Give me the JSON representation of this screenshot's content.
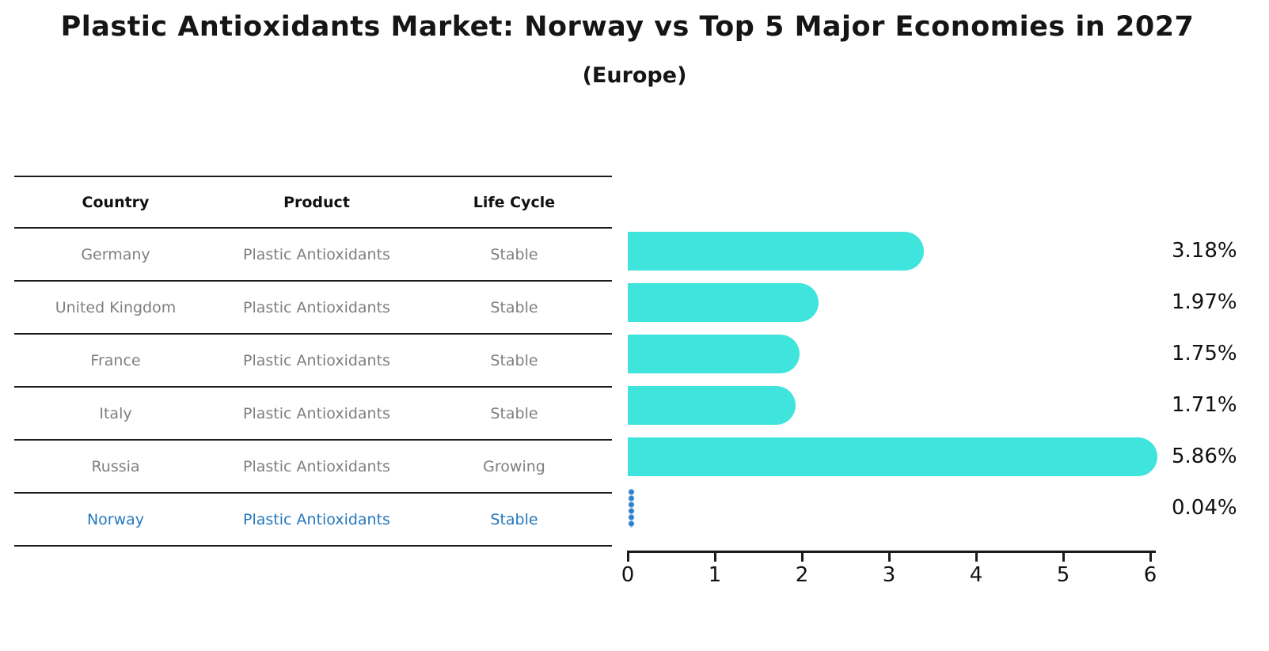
{
  "title": "Plastic Antioxidants Market: Norway vs Top 5 Major Economies in 2027",
  "subtitle": "(Europe)",
  "table": {
    "headers": [
      "Country",
      "Product",
      "Life Cycle"
    ],
    "rows": [
      {
        "country": "Germany",
        "product": "Plastic Antioxidants",
        "life_cycle": "Stable",
        "highlight": false
      },
      {
        "country": "United Kingdom",
        "product": "Plastic Antioxidants",
        "life_cycle": "Stable",
        "highlight": false
      },
      {
        "country": "France",
        "product": "Plastic Antioxidants",
        "life_cycle": "Stable",
        "highlight": false
      },
      {
        "country": "Italy",
        "product": "Plastic Antioxidants",
        "life_cycle": "Stable",
        "highlight": false
      },
      {
        "country": "Russia",
        "product": "Plastic Antioxidants",
        "life_cycle": "Growing",
        "highlight": false
      },
      {
        "country": "Norway",
        "product": "Plastic Antioxidants",
        "life_cycle": "Stable",
        "highlight": true
      }
    ]
  },
  "chart_data": {
    "type": "bar",
    "orientation": "horizontal",
    "categories": [
      "Germany",
      "United Kingdom",
      "France",
      "Italy",
      "Russia",
      "Norway"
    ],
    "values": [
      3.18,
      1.97,
      1.75,
      1.71,
      5.86,
      0.04
    ],
    "value_labels": [
      "3.18%",
      "1.97%",
      "1.75%",
      "1.71%",
      "5.86%",
      "0.04%"
    ],
    "title": "Plastic Antioxidants Market: Norway vs Top 5 Major Economies in 2027 (Europe)",
    "xlabel": "",
    "ylabel": "",
    "xlim": [
      0,
      6
    ],
    "xticks": [
      "0",
      "1",
      "2",
      "3",
      "4",
      "5",
      "6"
    ],
    "grid": false,
    "legend": false,
    "bar_color": "#3fe4dc",
    "highlight_color": "#2e7fd0",
    "highlight_index": 5
  },
  "colors": {
    "bar": "#3fe4dc",
    "highlight": "#2e7fd0",
    "table_text": "#7f7f7f",
    "highlight_text": "#2478be",
    "axis": "#1a1a1a",
    "title_text": "#151515"
  }
}
